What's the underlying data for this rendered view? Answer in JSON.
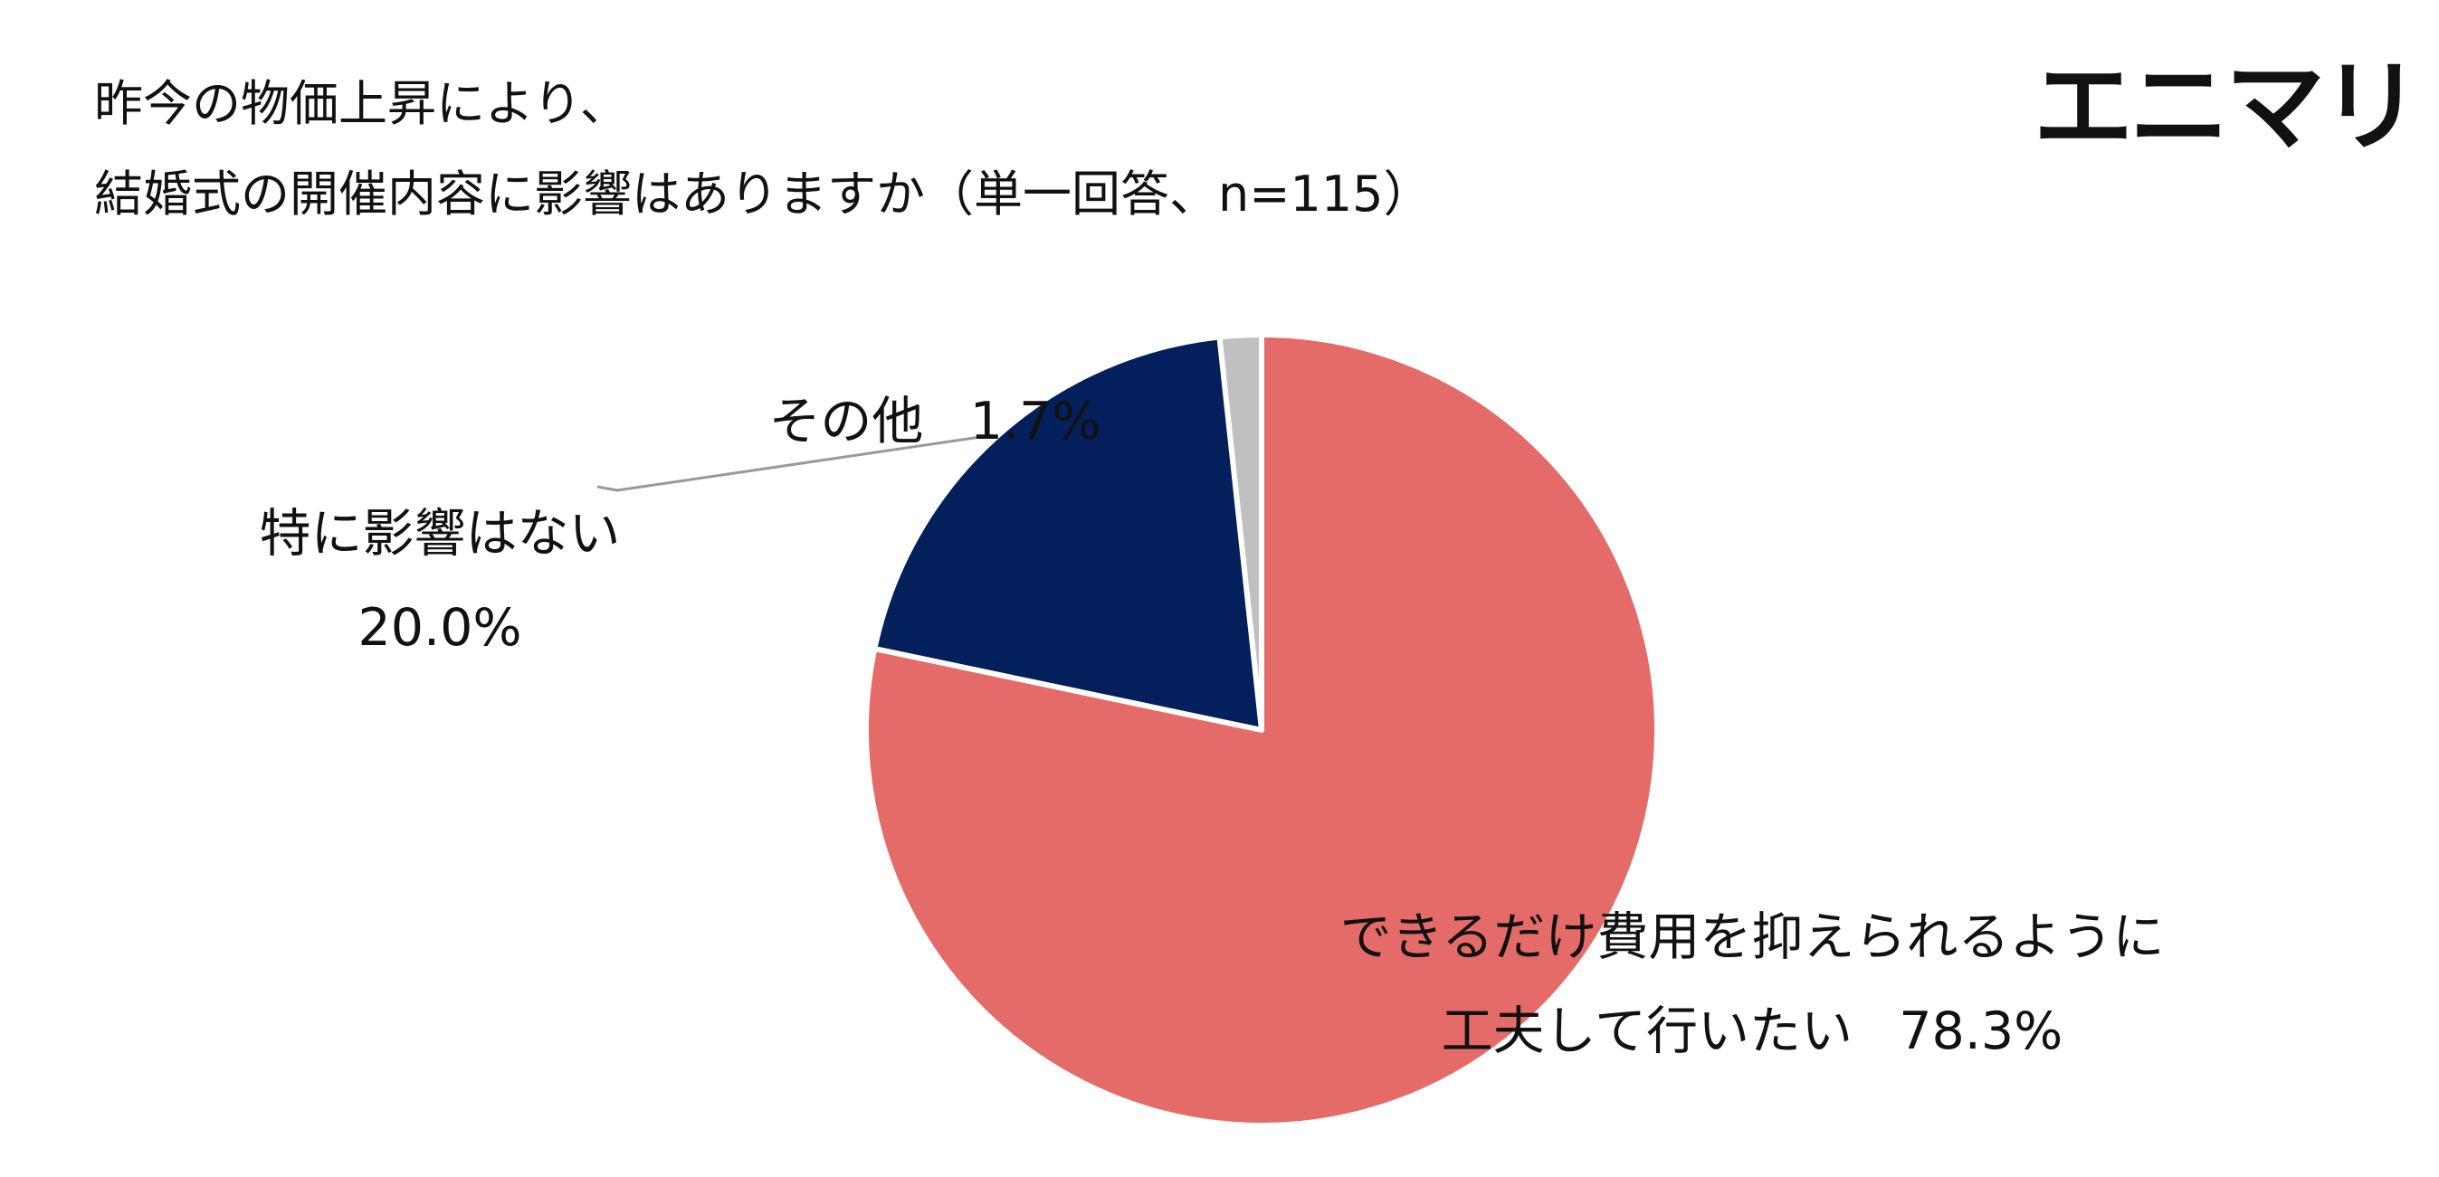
{
  "chart_data": {
    "type": "pie",
    "title_lines": [
      "昨今の物価上昇により、",
      "結婚式の開催内容に影響はありますか（単一回答、n=115）"
    ],
    "logo": "エニマリ",
    "categories": [
      "できるだけ費用を抑えられるように\n工夫して行いたい",
      "特に影響はない",
      "その他"
    ],
    "values": [
      78.3,
      20.0,
      1.7
    ],
    "value_labels": [
      "78.3%",
      "20.0%",
      "1.7%"
    ],
    "colors": [
      "#e56b68",
      "#03205c",
      "#c0c0c0"
    ]
  }
}
